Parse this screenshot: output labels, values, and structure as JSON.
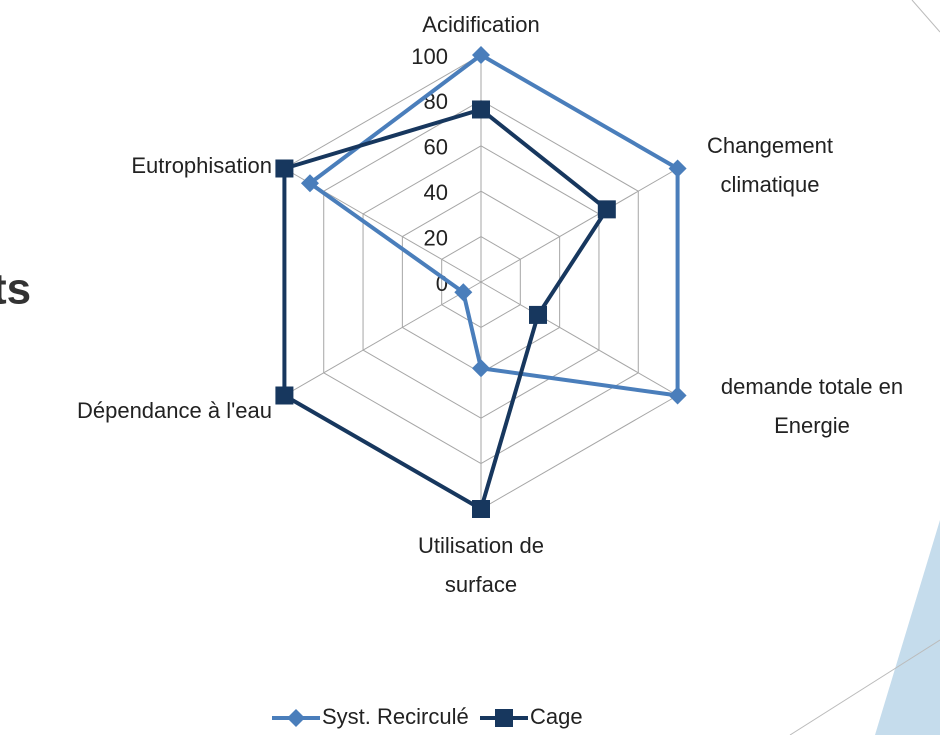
{
  "background_text": "ts",
  "chart_data": {
    "type": "radar",
    "categories": [
      "Acidification",
      "Changement climatique",
      "demande totale en Energie",
      "Utilisation de surface",
      "Dépendance à l'eau",
      "Eutrophisation"
    ],
    "series": [
      {
        "name": "Syst. Recirculé",
        "color": "#4a7ebb",
        "marker": "diamond",
        "values": [
          100,
          100,
          100,
          38,
          9,
          87
        ]
      },
      {
        "name": "Cage",
        "color": "#17375e",
        "marker": "square",
        "values": [
          76,
          64,
          29,
          100,
          100,
          100
        ]
      }
    ],
    "rlim": [
      0,
      100
    ],
    "rticks": [
      0,
      20,
      40,
      60,
      80,
      100
    ],
    "grid": true,
    "legend": "bottom"
  }
}
